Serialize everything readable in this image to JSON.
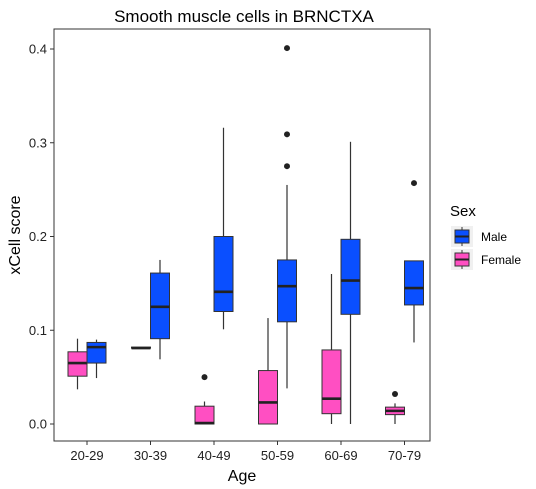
{
  "chart_data": {
    "type": "boxplot",
    "title": "Smooth muscle cells in BRNCTXA",
    "xlabel": "Age",
    "ylabel": "xCell score",
    "ylim": [
      -0.02,
      0.42
    ],
    "yticks": [
      "0.0",
      "0.1",
      "0.2",
      "0.3",
      "0.4"
    ],
    "categories": [
      "20-29",
      "30-39",
      "40-49",
      "50-59",
      "60-69",
      "70-79"
    ],
    "legend": {
      "title": "Sex",
      "placement": "right",
      "entries": [
        {
          "name": "Male",
          "color": "#0A4FFF"
        },
        {
          "name": "Female",
          "color": "#FF4FC2"
        }
      ]
    },
    "grid": false,
    "series": [
      {
        "name": "Female",
        "color": "#FF4FC2",
        "boxes": [
          {
            "category": "20-29",
            "min": 0.037,
            "q1": 0.051,
            "median": 0.065,
            "q3": 0.077,
            "max": 0.091,
            "outliers": []
          },
          {
            "category": "30-39",
            "min": 0.081,
            "q1": 0.081,
            "median": 0.081,
            "q3": 0.082,
            "max": 0.082,
            "outliers": []
          },
          {
            "category": "40-49",
            "min": 0.0,
            "q1": 0.0,
            "median": 0.001,
            "q3": 0.019,
            "max": 0.024,
            "outliers": [
              0.05
            ]
          },
          {
            "category": "50-59",
            "min": 0.0,
            "q1": 0.0,
            "median": 0.023,
            "q3": 0.057,
            "max": 0.113,
            "outliers": []
          },
          {
            "category": "60-69",
            "min": 0.0,
            "q1": 0.011,
            "median": 0.027,
            "q3": 0.079,
            "max": 0.16,
            "outliers": []
          },
          {
            "category": "70-79",
            "min": 0.0,
            "q1": 0.01,
            "median": 0.014,
            "q3": 0.018,
            "max": 0.022,
            "outliers": [
              0.032
            ]
          }
        ]
      },
      {
        "name": "Male",
        "color": "#0A4FFF",
        "boxes": [
          {
            "category": "20-29",
            "min": 0.049,
            "q1": 0.065,
            "median": 0.082,
            "q3": 0.087,
            "max": 0.09,
            "outliers": []
          },
          {
            "category": "30-39",
            "min": 0.069,
            "q1": 0.091,
            "median": 0.125,
            "q3": 0.161,
            "max": 0.175,
            "outliers": []
          },
          {
            "category": "40-49",
            "min": 0.101,
            "q1": 0.12,
            "median": 0.141,
            "q3": 0.2,
            "max": 0.316,
            "outliers": []
          },
          {
            "category": "50-59",
            "min": 0.038,
            "q1": 0.109,
            "median": 0.147,
            "q3": 0.175,
            "max": 0.255,
            "outliers": [
              0.275,
              0.309,
              0.401
            ]
          },
          {
            "category": "60-69",
            "min": 0.0,
            "q1": 0.117,
            "median": 0.153,
            "q3": 0.197,
            "max": 0.301,
            "outliers": []
          },
          {
            "category": "70-79",
            "min": 0.087,
            "q1": 0.127,
            "median": 0.145,
            "q3": 0.174,
            "max": 0.174,
            "outliers": [
              0.257
            ]
          }
        ]
      }
    ]
  }
}
